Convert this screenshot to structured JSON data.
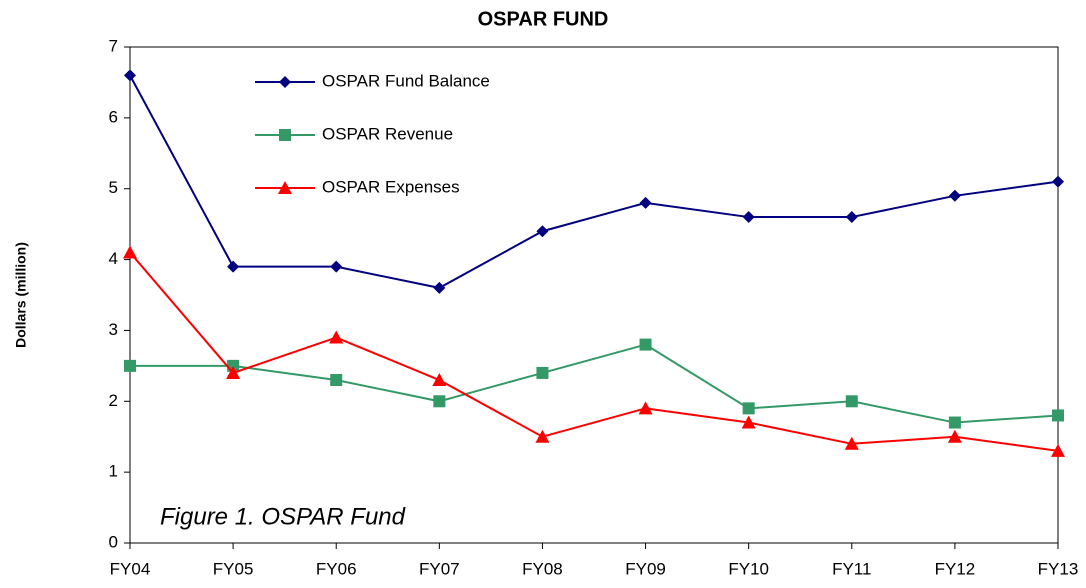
{
  "chart_data": {
    "type": "line",
    "title": "OSPAR FUND",
    "y_label": "Dollars (million)",
    "annotation": "Figure 1. OSPAR Fund",
    "categories": [
      "FY04",
      "FY05",
      "FY06",
      "FY07",
      "FY08",
      "FY09",
      "FY10",
      "FY11",
      "FY12",
      "FY13"
    ],
    "series": [
      {
        "name": "OSPAR Fund Balance",
        "color": "#000080",
        "marker": "diamond",
        "values": [
          6.6,
          3.9,
          3.9,
          3.6,
          4.4,
          4.8,
          4.6,
          4.6,
          4.9,
          5.1
        ]
      },
      {
        "name": "OSPAR Revenue",
        "color": "#339966",
        "marker": "square",
        "values": [
          2.5,
          2.5,
          2.3,
          2.0,
          2.4,
          2.8,
          1.9,
          2.0,
          1.7,
          1.8
        ]
      },
      {
        "name": "OSPAR Expenses",
        "color": "#ff0000",
        "marker": "triangle",
        "values": [
          4.1,
          2.4,
          2.9,
          2.3,
          1.5,
          1.9,
          1.7,
          1.4,
          1.5,
          1.3
        ]
      }
    ],
    "ylim": [
      0,
      7
    ],
    "yticks": [
      0,
      1,
      2,
      3,
      4,
      5,
      6,
      7
    ],
    "grid": false,
    "legend": "top-left"
  }
}
